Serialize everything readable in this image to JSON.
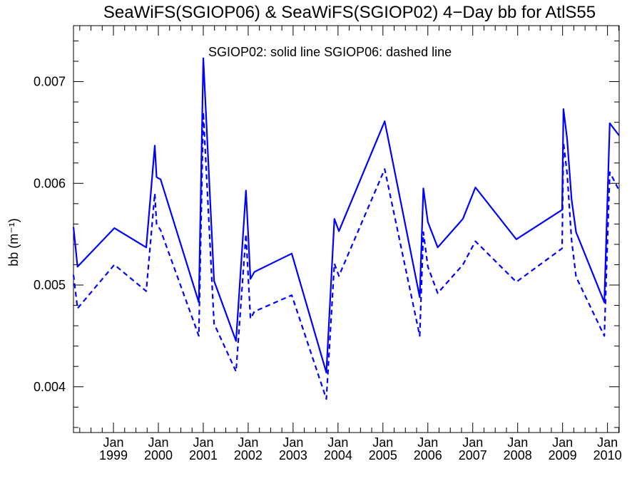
{
  "chart_data": {
    "type": "line",
    "title": "SeaWiFS(SGIOP06) & SeaWiFS(SGIOP02) 4−Day bb for AtlS55",
    "annotation": "SGIOP02: solid line   SGIOP06: dashed line",
    "xlabel": "",
    "ylabel": "bb (m⁻¹)",
    "xlim": [
      1998.11,
      2010.26
    ],
    "ylim": [
      0.00355,
      0.00755
    ],
    "grid": false,
    "line_color": "#0000ff",
    "x_tick_labels": [
      {
        "x": 1999.0,
        "month": "Jan",
        "year": "1999"
      },
      {
        "x": 2000.0,
        "month": "Jan",
        "year": "2000"
      },
      {
        "x": 2001.0,
        "month": "Jan",
        "year": "2001"
      },
      {
        "x": 2002.0,
        "month": "Jan",
        "year": "2002"
      },
      {
        "x": 2003.0,
        "month": "Jan",
        "year": "2003"
      },
      {
        "x": 2004.0,
        "month": "Jan",
        "year": "2004"
      },
      {
        "x": 2005.0,
        "month": "Jan",
        "year": "2005"
      },
      {
        "x": 2006.0,
        "month": "Jan",
        "year": "2006"
      },
      {
        "x": 2007.0,
        "month": "Jan",
        "year": "2007"
      },
      {
        "x": 2008.0,
        "month": "Jan",
        "year": "2008"
      },
      {
        "x": 2009.0,
        "month": "Jan",
        "year": "2009"
      },
      {
        "x": 2010.0,
        "month": "Jan",
        "year": "2010"
      }
    ],
    "y_ticks": [
      {
        "value": 0.004,
        "label": "0.004"
      },
      {
        "value": 0.005,
        "label": "0.005"
      },
      {
        "value": 0.006,
        "label": "0.006"
      },
      {
        "value": 0.007,
        "label": "0.007"
      }
    ],
    "series": [
      {
        "style": "solid",
        "points": [
          [
            1998.11,
            0.00557
          ],
          [
            1998.2,
            0.00518
          ],
          [
            1999.02,
            0.00556
          ],
          [
            1999.73,
            0.00537
          ],
          [
            1999.92,
            0.00637
          ],
          [
            1999.96,
            0.00606
          ],
          [
            2000.05,
            0.00604
          ],
          [
            2000.9,
            0.00483
          ],
          [
            2001.0,
            0.00723
          ],
          [
            2001.24,
            0.00504
          ],
          [
            2001.73,
            0.00445
          ],
          [
            2001.95,
            0.00593
          ],
          [
            2002.05,
            0.00506
          ],
          [
            2002.14,
            0.00513
          ],
          [
            2002.97,
            0.00531
          ],
          [
            2003.74,
            0.00414
          ],
          [
            2003.92,
            0.00565
          ],
          [
            2004.02,
            0.00553
          ],
          [
            2005.04,
            0.00661
          ],
          [
            2005.82,
            0.00488
          ],
          [
            2005.9,
            0.00595
          ],
          [
            2006.0,
            0.00562
          ],
          [
            2006.22,
            0.00537
          ],
          [
            2006.78,
            0.00565
          ],
          [
            2007.06,
            0.00596
          ],
          [
            2007.97,
            0.00545
          ],
          [
            2008.99,
            0.00574
          ],
          [
            2009.02,
            0.00673
          ],
          [
            2009.1,
            0.00644
          ],
          [
            2009.2,
            0.00584
          ],
          [
            2009.3,
            0.00552
          ],
          [
            2009.93,
            0.00483
          ],
          [
            2010.05,
            0.00659
          ],
          [
            2010.26,
            0.00647
          ]
        ]
      },
      {
        "style": "dashed",
        "points": [
          [
            1998.11,
            0.0051
          ],
          [
            1998.2,
            0.00477
          ],
          [
            1999.02,
            0.0052
          ],
          [
            1999.73,
            0.00494
          ],
          [
            1999.92,
            0.0059
          ],
          [
            1999.96,
            0.0056
          ],
          [
            2000.05,
            0.00554
          ],
          [
            2000.9,
            0.0045
          ],
          [
            2001.0,
            0.0067
          ],
          [
            2001.24,
            0.00462
          ],
          [
            2001.73,
            0.00415
          ],
          [
            2001.95,
            0.0055
          ],
          [
            2002.05,
            0.00467
          ],
          [
            2002.14,
            0.00474
          ],
          [
            2002.97,
            0.0049
          ],
          [
            2003.74,
            0.00388
          ],
          [
            2003.92,
            0.00521
          ],
          [
            2004.02,
            0.00509
          ],
          [
            2005.04,
            0.00614
          ],
          [
            2005.82,
            0.0045
          ],
          [
            2005.9,
            0.00552
          ],
          [
            2006.0,
            0.00518
          ],
          [
            2006.22,
            0.00492
          ],
          [
            2006.78,
            0.0052
          ],
          [
            2007.06,
            0.00543
          ],
          [
            2007.97,
            0.00503
          ],
          [
            2008.99,
            0.00536
          ],
          [
            2009.02,
            0.0064
          ],
          [
            2009.1,
            0.0061
          ],
          [
            2009.2,
            0.00544
          ],
          [
            2009.3,
            0.00508
          ],
          [
            2009.93,
            0.0045
          ],
          [
            2010.05,
            0.00611
          ],
          [
            2010.26,
            0.00593
          ]
        ]
      }
    ]
  }
}
